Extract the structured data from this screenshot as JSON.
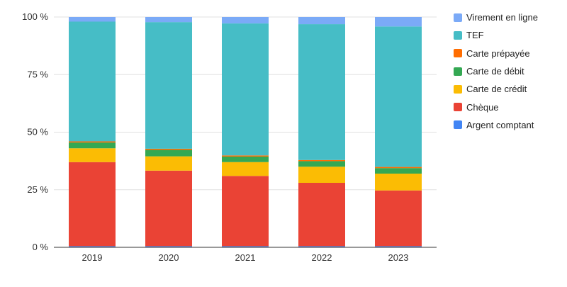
{
  "chart_data": {
    "type": "bar",
    "stacked": true,
    "normalized": true,
    "title": "",
    "xlabel": "",
    "ylabel": "",
    "ylim": [
      0,
      100
    ],
    "y_ticks": [
      "0 %",
      "25 %",
      "50 %",
      "75 %",
      "100 %"
    ],
    "y_tick_values": [
      0,
      25,
      50,
      75,
      100
    ],
    "categories": [
      "2019",
      "2020",
      "2021",
      "2022",
      "2023"
    ],
    "series": [
      {
        "name": "Argent comptant",
        "color": "#4285f4",
        "values": [
          0.5,
          0.5,
          0.5,
          0.5,
          0.5
        ]
      },
      {
        "name": "Chèque",
        "color": "#ea4335",
        "values": [
          36.5,
          32.8,
          30.5,
          27.5,
          24.2
        ]
      },
      {
        "name": "Carte de crédit",
        "color": "#fbbc04",
        "values": [
          6.0,
          6.2,
          6.0,
          7.0,
          7.3
        ]
      },
      {
        "name": "Carte de débit",
        "color": "#34a853",
        "values": [
          2.5,
          2.8,
          2.4,
          2.4,
          2.4
        ]
      },
      {
        "name": "Carte prépayée",
        "color": "#ff6d01",
        "values": [
          0.5,
          0.5,
          0.5,
          0.5,
          0.5
        ]
      },
      {
        "name": "TEF",
        "color": "#46bdc6",
        "values": [
          52.0,
          55.0,
          57.3,
          59.0,
          61.0
        ]
      },
      {
        "name": "Virement en ligne",
        "color": "#7baaf7",
        "values": [
          2.0,
          2.2,
          2.8,
          3.1,
          4.1
        ]
      }
    ],
    "grid": true,
    "legend_position": "right"
  }
}
